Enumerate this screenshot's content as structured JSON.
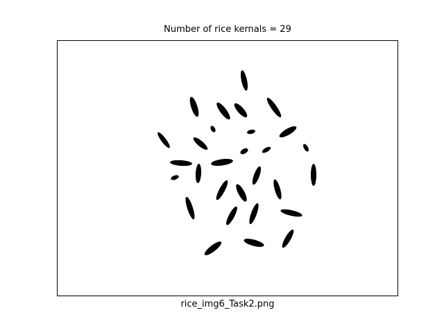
{
  "figure": {
    "title": "Number of rice kernals = 29",
    "caption": "rice_img6_Task2.png"
  },
  "image": {
    "background_color": "#ffffff",
    "kernel_color": "#000000",
    "kernel_count": 29
  }
}
